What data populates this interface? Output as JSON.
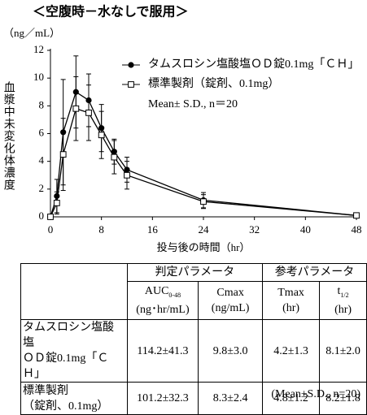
{
  "heading": "＜空腹時－水なしで服用＞",
  "chart_data": {
    "type": "line",
    "y_unit_label": "（ng／mL）",
    "ylabel": "血漿中未変化体濃度",
    "xlabel": "投与後の時間（hr）",
    "annotation": "Mean± S.D., n＝20",
    "x": [
      0,
      1,
      2,
      4,
      6,
      8,
      10,
      12,
      24,
      48
    ],
    "xlim": [
      0,
      48
    ],
    "xticks": [
      0,
      8,
      16,
      24,
      32,
      40,
      48
    ],
    "ylim": [
      0,
      12
    ],
    "yticks": [
      0,
      2,
      4,
      6,
      8,
      10,
      12
    ],
    "series": [
      {
        "name": "タムスロシン塩酸塩ＯＤ錠0.1mg「ＣＨ」",
        "color": "#000000",
        "marker": "circle",
        "values": [
          0,
          1.5,
          6.1,
          9.0,
          8.4,
          6.4,
          4.7,
          3.4,
          1.2,
          0.1
        ],
        "errors": [
          0,
          1.2,
          3.8,
          2.6,
          1.9,
          1.7,
          0.9,
          0.9,
          0.55,
          0.05
        ]
      },
      {
        "name": "標準製剤（錠剤、0.1mg）",
        "color": "#000000",
        "marker": "square",
        "values": [
          0,
          1.0,
          4.5,
          7.8,
          7.5,
          5.9,
          4.3,
          3.0,
          1.1,
          0.1
        ],
        "errors": [
          0,
          0.8,
          2.6,
          2.3,
          2.0,
          1.7,
          1.2,
          1.0,
          0.5,
          0.05
        ]
      }
    ]
  },
  "table": {
    "group_headers": [
      "判定パラメータ",
      "参考パラメータ"
    ],
    "columns": [
      {
        "name": "AUC",
        "sub": "0-48",
        "unit": "(ng･hr/mL)"
      },
      {
        "name": "Cmax",
        "unit": "(ng/mL)"
      },
      {
        "name": "Tmax",
        "unit": "(hr)"
      },
      {
        "name": "t",
        "sub": "1/2",
        "unit": "(hr)"
      }
    ],
    "rows": [
      {
        "label": [
          "タムスロシン塩酸塩",
          "ＯＤ錠0.1mg「ＣＨ」"
        ],
        "cells": [
          "114.2±41.3",
          "9.8±3.0",
          "4.2±1.3",
          "8.1±2.0"
        ]
      },
      {
        "label": [
          "標準製剤",
          "（錠剤、0.1mg）"
        ],
        "cells": [
          "101.2±32.3",
          "8.3±2.4",
          "4.8±1.2",
          "8.2±1.8"
        ]
      }
    ],
    "footnote": "(Mean±S.D., n=20)"
  }
}
